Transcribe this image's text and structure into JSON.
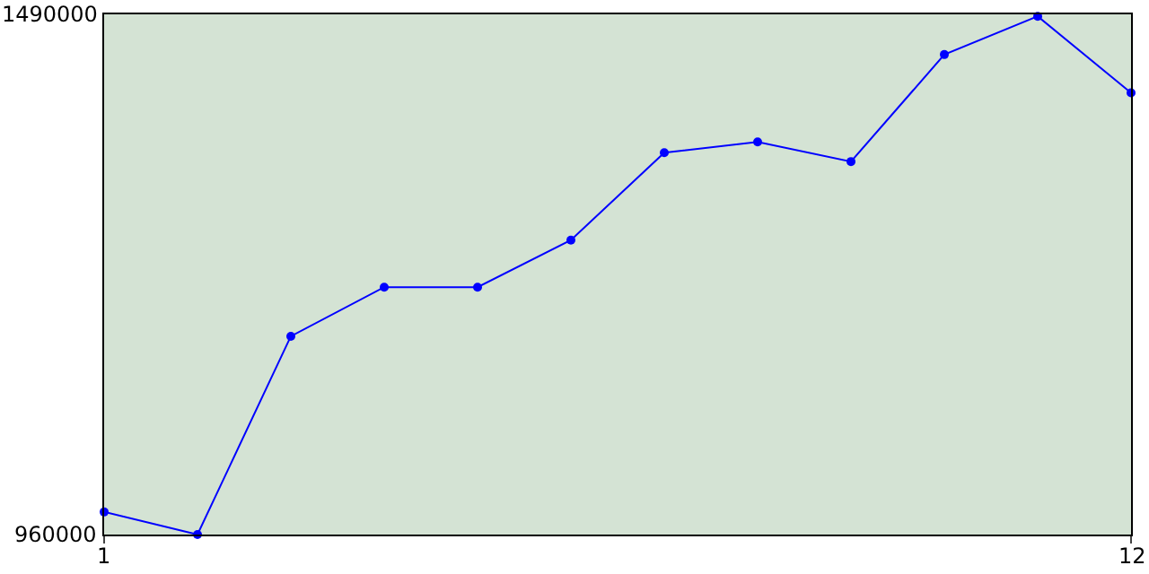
{
  "chart_data": {
    "type": "line",
    "x": [
      1,
      2,
      3,
      4,
      5,
      6,
      7,
      8,
      9,
      10,
      11,
      12
    ],
    "series": [
      {
        "color": "#0000ff",
        "values": [
          983000,
          960000,
          1162000,
          1212000,
          1212000,
          1260000,
          1349000,
          1360000,
          1340000,
          1449000,
          1488000,
          1410000
        ]
      }
    ],
    "xlim": [
      1,
      12
    ],
    "xticks": [
      1,
      12
    ],
    "ylim": [
      960000,
      1490000
    ],
    "yticks": [
      960000,
      1490000
    ],
    "legend": false,
    "marker": "circle",
    "line_style": "solid"
  }
}
